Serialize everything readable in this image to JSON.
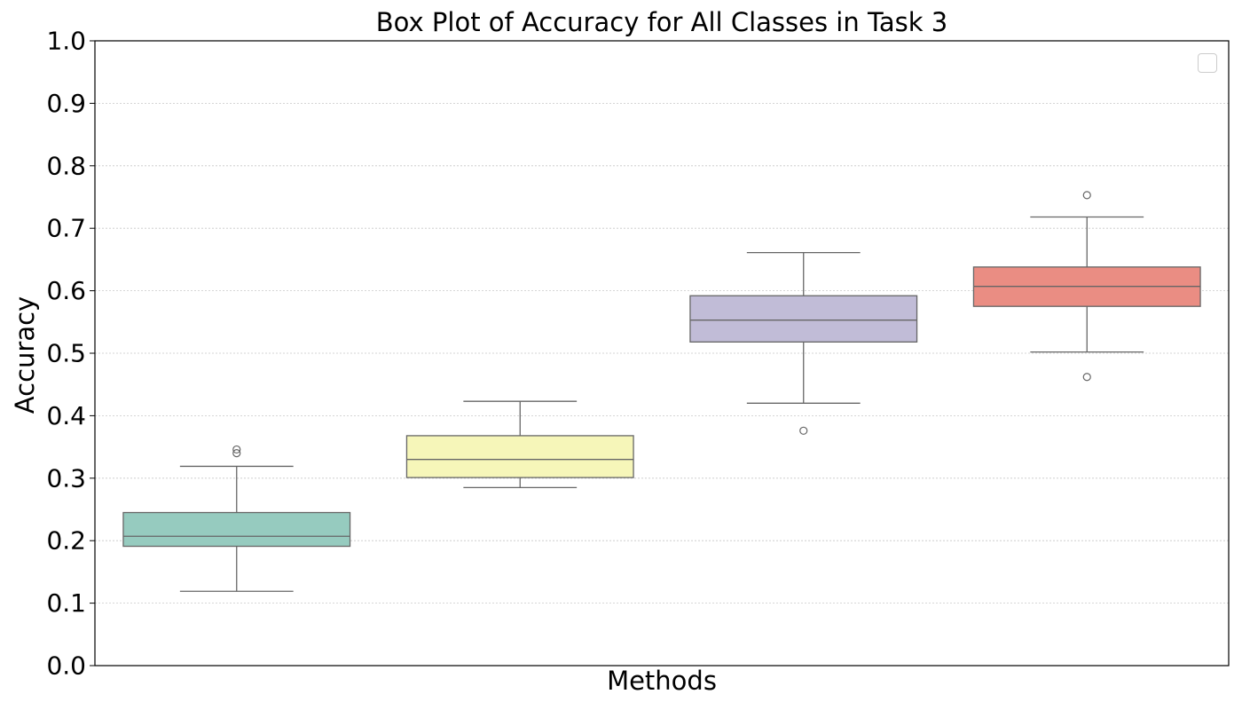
{
  "chart_data": {
    "type": "box",
    "title": "Box Plot of Accuracy for All Classes in Task 3",
    "xlabel": "Methods",
    "ylabel": "Accuracy",
    "ylim": [
      0.0,
      1.0
    ],
    "yticks": [
      "0.0",
      "0.1",
      "0.2",
      "0.3",
      "0.4",
      "0.5",
      "0.6",
      "0.7",
      "0.8",
      "0.9",
      "1.0"
    ],
    "grid": "horizontal dotted",
    "legend": "top-right (empty)",
    "boxes": [
      {
        "color": "#96cbbf",
        "whisker_low": 0.119,
        "q1": 0.191,
        "median": 0.207,
        "q3": 0.245,
        "whisker_high": 0.319,
        "outliers": [
          0.34,
          0.346
        ]
      },
      {
        "color": "#f6f6b9",
        "whisker_low": 0.285,
        "q1": 0.301,
        "median": 0.33,
        "q3": 0.368,
        "whisker_high": 0.423,
        "outliers": []
      },
      {
        "color": "#c1bcd7",
        "whisker_low": 0.42,
        "q1": 0.518,
        "median": 0.553,
        "q3": 0.592,
        "whisker_high": 0.661,
        "outliers": [
          0.376
        ]
      },
      {
        "color": "#ea8d83",
        "whisker_low": 0.502,
        "q1": 0.575,
        "median": 0.607,
        "q3": 0.638,
        "whisker_high": 0.718,
        "outliers": [
          0.753,
          0.462
        ]
      }
    ]
  }
}
